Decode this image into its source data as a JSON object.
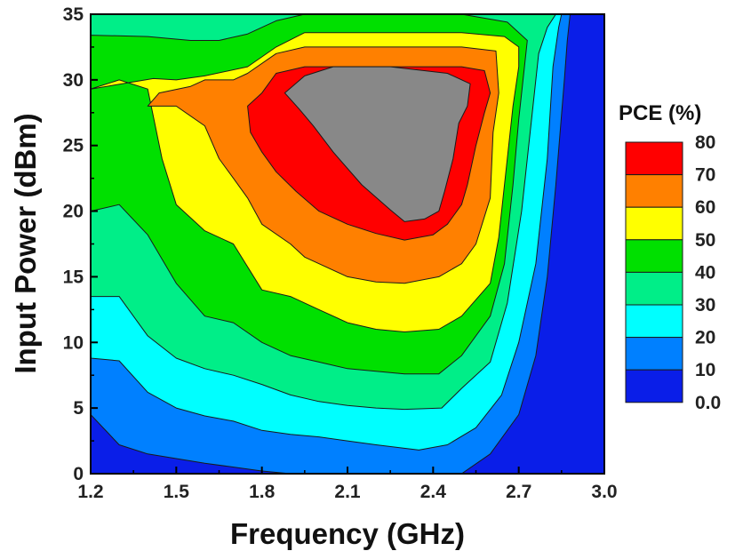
{
  "chart_data": {
    "type": "contour",
    "xlabel": "Frequency (GHz)",
    "ylabel": "Input Power (dBm)",
    "xlim": [
      1.2,
      3.0
    ],
    "ylim": [
      0,
      35
    ],
    "x_ticks": [
      "1.2",
      "1.5",
      "1.8",
      "2.1",
      "2.4",
      "2.7",
      "3.0"
    ],
    "y_ticks": [
      "0",
      "5",
      "10",
      "15",
      "20",
      "25",
      "30",
      "35"
    ],
    "legend": {
      "title": "PCE (%)",
      "placement": "right",
      "tick_labels": [
        "80",
        "70",
        "60",
        "50",
        "40",
        "30",
        "20",
        "10",
        "0.0"
      ],
      "levels": [
        {
          "range": [
            70,
            80
          ],
          "color": "#ff0000"
        },
        {
          "range": [
            60,
            70
          ],
          "color": "#ff8000"
        },
        {
          "range": [
            50,
            60
          ],
          "color": "#ffff00"
        },
        {
          "range": [
            40,
            50
          ],
          "color": "#00e000"
        },
        {
          "range": [
            30,
            40
          ],
          "color": "#00ee88"
        },
        {
          "range": [
            20,
            30
          ],
          "color": "#00ffff"
        },
        {
          "range": [
            10,
            20
          ],
          "color": "#0080ff"
        },
        {
          "range": [
            0,
            10
          ],
          "color": "#0a1ee8"
        }
      ]
    },
    "contour_boundaries": [
      {
        "level": 10,
        "points": [
          [
            1.2,
            4.5
          ],
          [
            1.3,
            2.2
          ],
          [
            1.4,
            1.5
          ],
          [
            1.6,
            0.8
          ],
          [
            1.8,
            0.2
          ],
          [
            1.9,
            0
          ],
          [
            2.5,
            0
          ],
          [
            2.6,
            1.5
          ],
          [
            2.7,
            4.5
          ],
          [
            2.76,
            9
          ],
          [
            2.8,
            15
          ],
          [
            2.83,
            22
          ],
          [
            2.86,
            30
          ],
          [
            2.87,
            33
          ],
          [
            2.88,
            35
          ]
        ]
      },
      {
        "level": 20,
        "points": [
          [
            1.2,
            8.8
          ],
          [
            1.3,
            8.6
          ],
          [
            1.4,
            6.2
          ],
          [
            1.5,
            5
          ],
          [
            1.6,
            4.4
          ],
          [
            1.7,
            4
          ],
          [
            1.8,
            3.3
          ],
          [
            1.9,
            3
          ],
          [
            2.0,
            2.8
          ],
          [
            2.1,
            2.5
          ],
          [
            2.2,
            2.2
          ],
          [
            2.35,
            1.8
          ],
          [
            2.45,
            2.2
          ],
          [
            2.55,
            3.5
          ],
          [
            2.64,
            6
          ],
          [
            2.7,
            10
          ],
          [
            2.76,
            16
          ],
          [
            2.8,
            24
          ],
          [
            2.82,
            31
          ],
          [
            2.84,
            34
          ],
          [
            2.85,
            35
          ]
        ]
      },
      {
        "level": 30,
        "points": [
          [
            1.2,
            13.5
          ],
          [
            1.3,
            13.5
          ],
          [
            1.4,
            10.5
          ],
          [
            1.5,
            8.8
          ],
          [
            1.6,
            8
          ],
          [
            1.7,
            7.5
          ],
          [
            1.8,
            6.8
          ],
          [
            1.9,
            6
          ],
          [
            2.0,
            5.5
          ],
          [
            2.1,
            5.2
          ],
          [
            2.2,
            5
          ],
          [
            2.3,
            4.9
          ],
          [
            2.43,
            5
          ],
          [
            2.5,
            6.5
          ],
          [
            2.6,
            8.5
          ],
          [
            2.66,
            13
          ],
          [
            2.71,
            20
          ],
          [
            2.75,
            28
          ],
          [
            2.77,
            32
          ],
          [
            2.8,
            34
          ],
          [
            2.83,
            35
          ]
        ]
      },
      {
        "level": 40,
        "points": [
          [
            1.2,
            20
          ],
          [
            1.3,
            20.5
          ],
          [
            1.4,
            18.2
          ],
          [
            1.5,
            14.5
          ],
          [
            1.6,
            12
          ],
          [
            1.7,
            11.5
          ],
          [
            1.8,
            10
          ],
          [
            1.9,
            9
          ],
          [
            2.0,
            8.5
          ],
          [
            2.1,
            8
          ],
          [
            2.2,
            7.8
          ],
          [
            2.3,
            7.6
          ],
          [
            2.42,
            7.6
          ],
          [
            2.5,
            9
          ],
          [
            2.6,
            12
          ],
          [
            2.65,
            16
          ],
          [
            2.68,
            22
          ],
          [
            2.7,
            27
          ],
          [
            2.72,
            31
          ],
          [
            2.73,
            33
          ],
          [
            2.66,
            34.4
          ],
          [
            2.5,
            35
          ],
          [
            1.95,
            35
          ],
          [
            1.85,
            34.5
          ],
          [
            1.75,
            33.5
          ],
          [
            1.65,
            33
          ],
          [
            1.55,
            33
          ],
          [
            1.4,
            33.3
          ],
          [
            1.2,
            33.4
          ]
        ]
      },
      {
        "level": 50,
        "points": [
          [
            1.2,
            29.3
          ],
          [
            1.3,
            30
          ],
          [
            1.4,
            29.3
          ],
          [
            1.45,
            24
          ],
          [
            1.5,
            20.5
          ],
          [
            1.6,
            18.5
          ],
          [
            1.7,
            17.5
          ],
          [
            1.8,
            14
          ],
          [
            1.9,
            13.5
          ],
          [
            2.0,
            12.5
          ],
          [
            2.1,
            11.5
          ],
          [
            2.2,
            11
          ],
          [
            2.3,
            10.8
          ],
          [
            2.42,
            11
          ],
          [
            2.5,
            12
          ],
          [
            2.6,
            14.5
          ],
          [
            2.63,
            18
          ],
          [
            2.66,
            24
          ],
          [
            2.68,
            28
          ],
          [
            2.7,
            31
          ],
          [
            2.7,
            32.5
          ],
          [
            2.65,
            33.3
          ],
          [
            2.5,
            33.6
          ],
          [
            1.95,
            33.6
          ],
          [
            1.85,
            32.5
          ],
          [
            1.75,
            31
          ],
          [
            1.6,
            30.3
          ],
          [
            1.5,
            30
          ],
          [
            1.42,
            30.1
          ]
        ]
      },
      {
        "level": 60,
        "points": [
          [
            1.4,
            28
          ],
          [
            1.44,
            29
          ],
          [
            1.55,
            29.5
          ],
          [
            1.6,
            30
          ],
          [
            1.7,
            30
          ],
          [
            1.75,
            30.5
          ],
          [
            1.85,
            32
          ],
          [
            1.95,
            32.5
          ],
          [
            2.5,
            32.5
          ],
          [
            2.62,
            32.2
          ],
          [
            2.63,
            29
          ],
          [
            2.61,
            26
          ],
          [
            2.6,
            21
          ],
          [
            2.55,
            17.5
          ],
          [
            2.5,
            16
          ],
          [
            2.42,
            15
          ],
          [
            2.3,
            14.5
          ],
          [
            2.2,
            14.6
          ],
          [
            2.1,
            15
          ],
          [
            2.0,
            16
          ],
          [
            1.95,
            16.5
          ],
          [
            1.9,
            17.5
          ],
          [
            1.8,
            19
          ],
          [
            1.75,
            21
          ],
          [
            1.7,
            22.5
          ],
          [
            1.65,
            24
          ],
          [
            1.6,
            26.5
          ],
          [
            1.5,
            28
          ]
        ]
      },
      {
        "level": 70,
        "points": [
          [
            1.75,
            28
          ],
          [
            1.8,
            29
          ],
          [
            1.85,
            30.5
          ],
          [
            1.95,
            31
          ],
          [
            2.5,
            31
          ],
          [
            2.58,
            30.7
          ],
          [
            2.6,
            29
          ],
          [
            2.58,
            27.5
          ],
          [
            2.55,
            25
          ],
          [
            2.52,
            22
          ],
          [
            2.5,
            20.5
          ],
          [
            2.45,
            19
          ],
          [
            2.4,
            18.2
          ],
          [
            2.3,
            17.8
          ],
          [
            2.2,
            18.3
          ],
          [
            2.1,
            19
          ],
          [
            2.0,
            20
          ],
          [
            1.92,
            21.5
          ],
          [
            1.85,
            23
          ],
          [
            1.8,
            24.5
          ],
          [
            1.76,
            26
          ]
        ]
      },
      {
        "level": 80,
        "points": [
          [
            1.88,
            29
          ],
          [
            1.95,
            30.3
          ],
          [
            2.05,
            31
          ],
          [
            2.25,
            31
          ],
          [
            2.45,
            30.5
          ],
          [
            2.53,
            29.7
          ],
          [
            2.52,
            28
          ],
          [
            2.49,
            26.7
          ],
          [
            2.47,
            24
          ],
          [
            2.44,
            21.5
          ],
          [
            2.42,
            20
          ],
          [
            2.37,
            19.4
          ],
          [
            2.3,
            19.2
          ],
          [
            2.25,
            20.1
          ],
          [
            2.15,
            22
          ],
          [
            2.05,
            24.5
          ],
          [
            1.98,
            26.5
          ],
          [
            1.93,
            27.8
          ]
        ]
      }
    ]
  }
}
